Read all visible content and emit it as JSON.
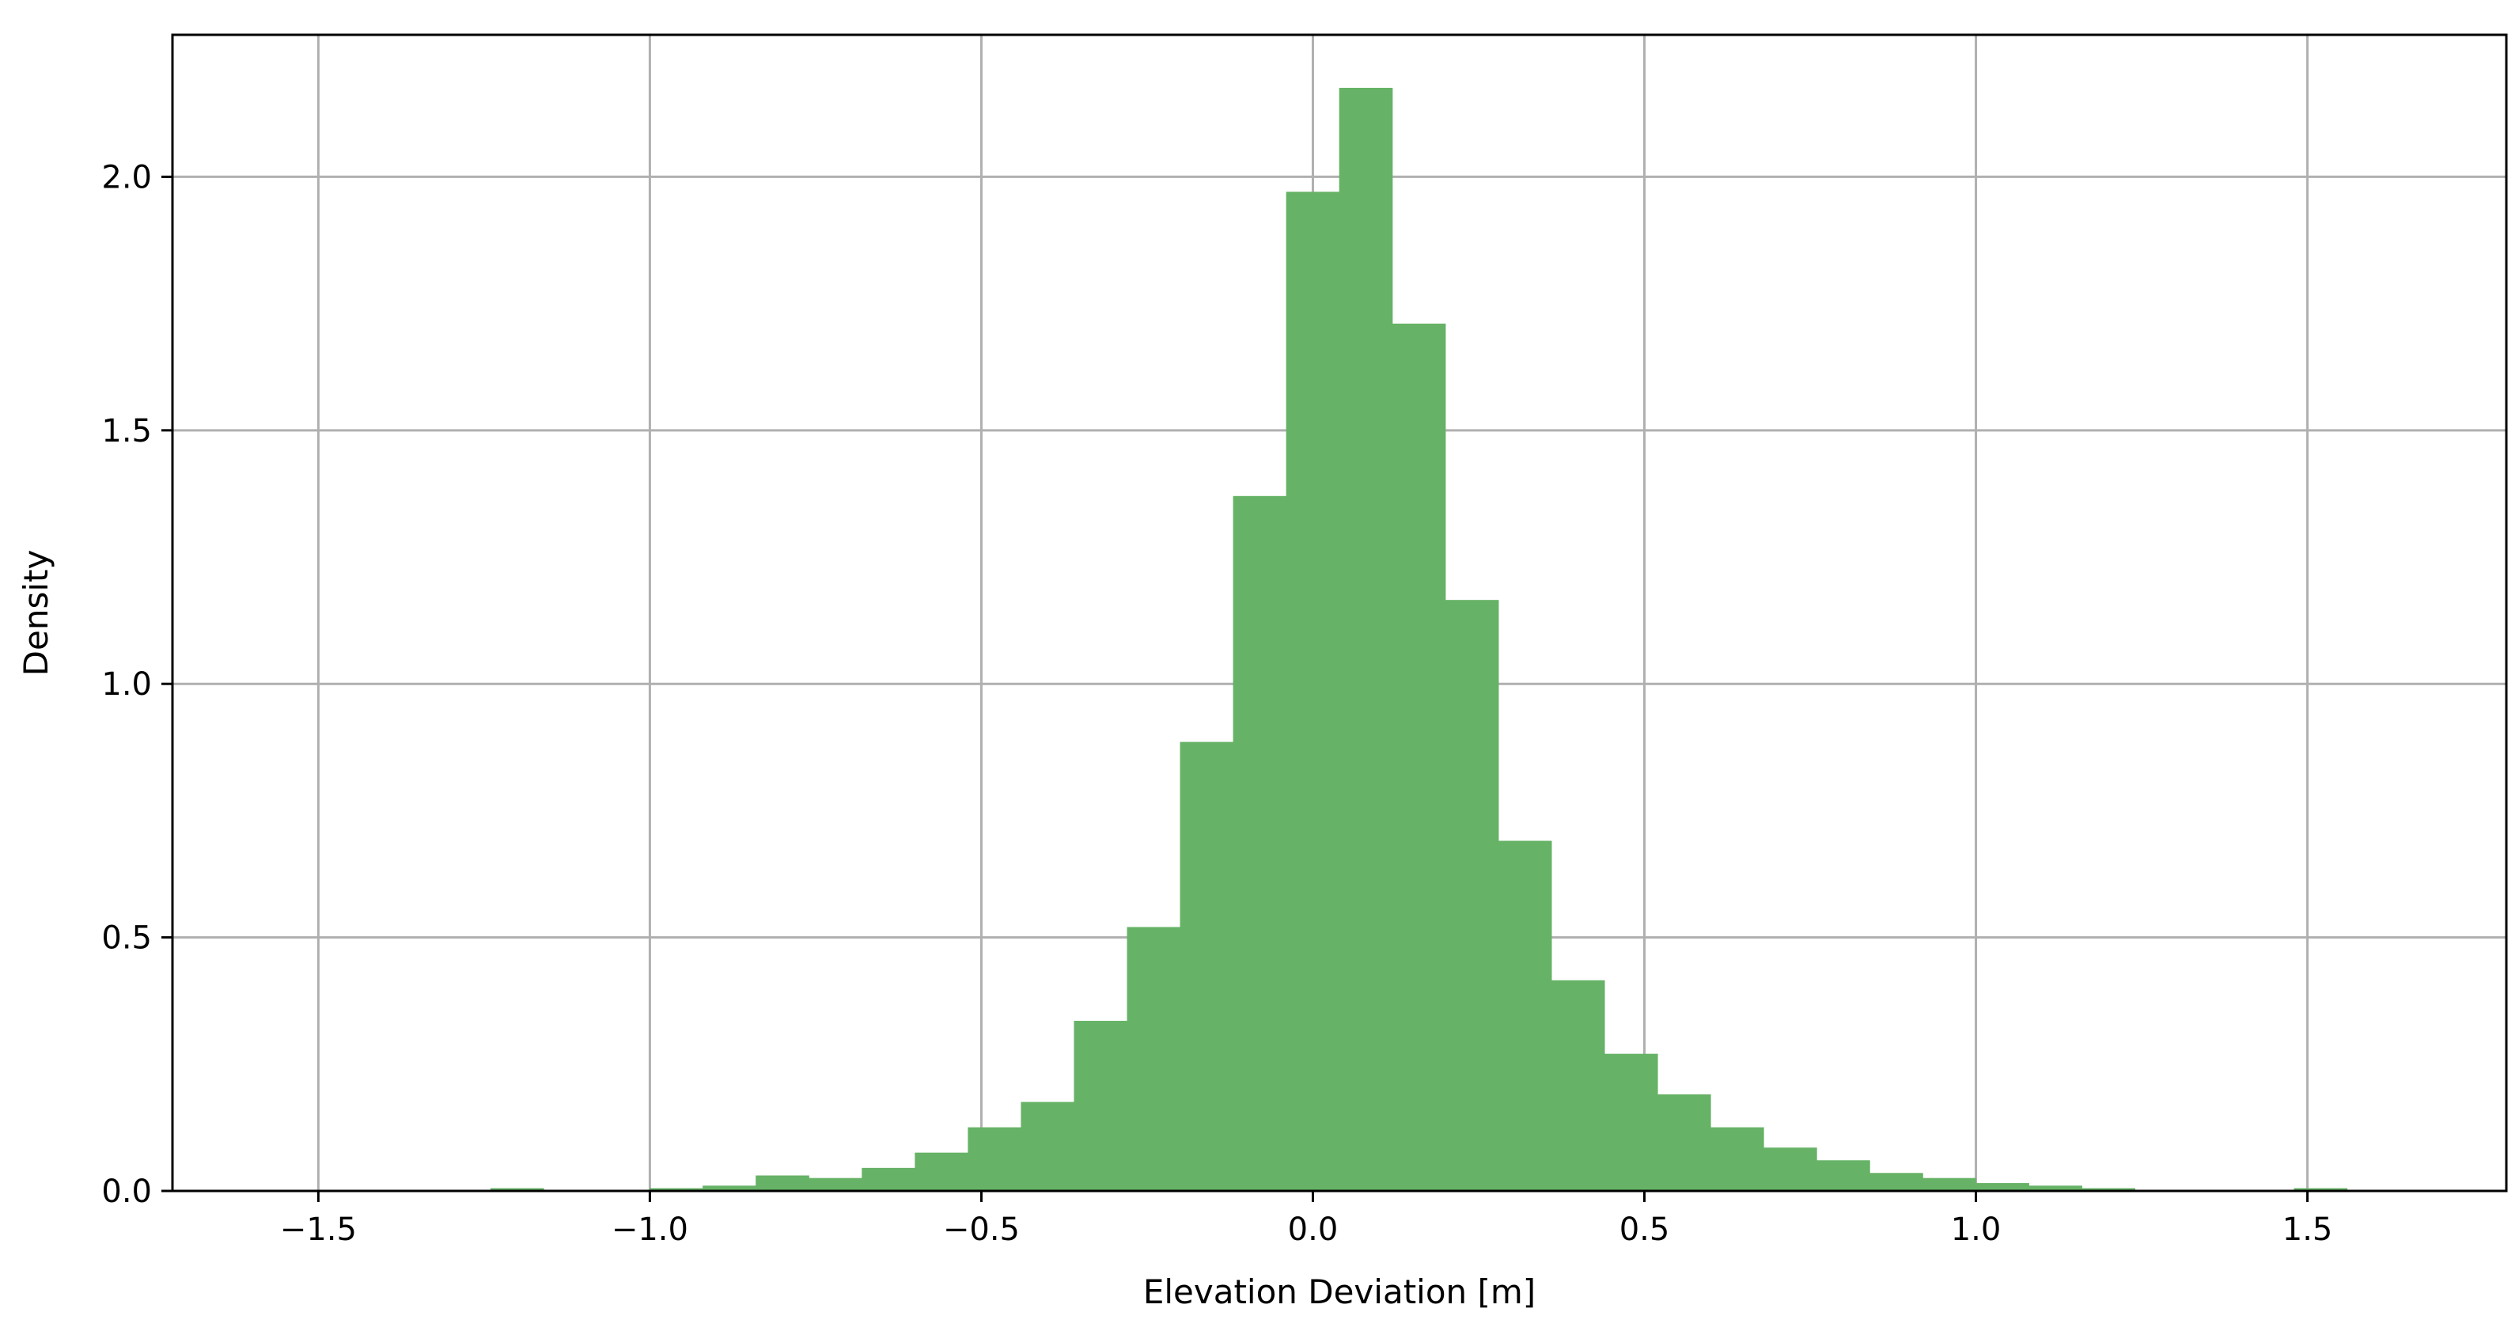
{
  "colors": {
    "bar_fill": "#66b266",
    "grid": "#b0b0b0",
    "axis": "#000000",
    "background": "#ffffff"
  },
  "chart_data": {
    "type": "bar",
    "title": "",
    "xlabel": "Elevation Deviation [m]",
    "ylabel": "Density",
    "xlim": [
      -1.72,
      1.8
    ],
    "ylim": [
      0.0,
      2.28
    ],
    "grid": true,
    "xticks": [
      -1.5,
      -1.0,
      -0.5,
      0.0,
      0.5,
      1.0,
      1.5
    ],
    "xtick_labels": [
      "−1.5",
      "−1.0",
      "−0.5",
      "0.0",
      "0.5",
      "1.0",
      "1.5"
    ],
    "yticks": [
      0.0,
      0.5,
      1.0,
      1.5,
      2.0
    ],
    "ytick_labels": [
      "0.0",
      "0.5",
      "1.0",
      "1.5",
      "2.0"
    ],
    "bin_width": 0.08,
    "bin_edges_start": -1.24,
    "values": [
      0.005,
      0.0,
      0.0,
      0.005,
      0.01,
      0.03,
      0.025,
      0.045,
      0.075,
      0.125,
      0.175,
      0.335,
      0.52,
      0.885,
      1.37,
      1.97,
      2.175,
      1.71,
      1.165,
      0.69,
      0.415,
      0.27,
      0.19,
      0.125,
      0.085,
      0.06,
      0.035,
      0.025,
      0.015,
      0.01,
      0.005,
      0.0,
      0.0,
      0.0,
      0.005
    ]
  }
}
